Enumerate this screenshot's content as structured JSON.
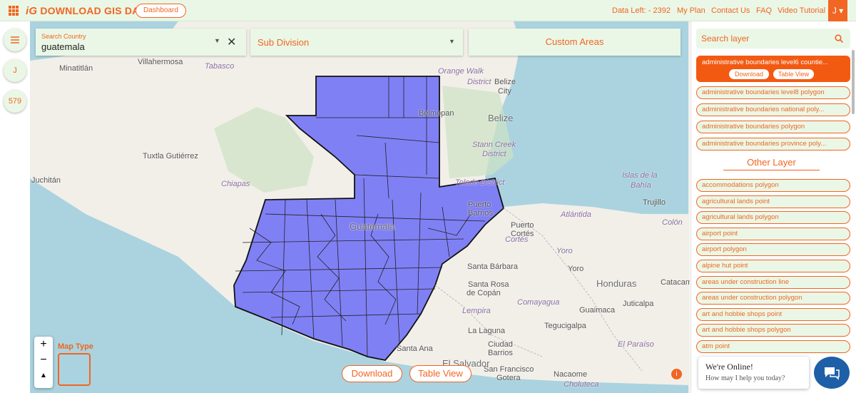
{
  "header": {
    "logo": "DOWNLOAD GIS DATA",
    "logo_icon": "iG",
    "dashboard": "Dashboard",
    "data_left": "Data Left: - 2392",
    "nav": [
      "My Plan",
      "Contact Us",
      "FAQ",
      "Video Tutorial"
    ],
    "user": "J"
  },
  "sidebar": {
    "user": "J",
    "count": "579"
  },
  "search": {
    "country_label": "Search Country",
    "country": "guatemala",
    "subdivision": "Sub Division",
    "custom": "Custom Areas"
  },
  "map": {
    "labels": [
      "Minatitlán",
      "Villahermosa",
      "Tabasco",
      "Orange Walk",
      "District",
      "Belize",
      "City",
      "Belmopan",
      "Belize",
      "Tuxtla Gutiérrez",
      "Stann Creek",
      "District",
      "Juchitán",
      "Chiapas",
      "Toledo District",
      "Islas de la",
      "Bahía",
      "Puerto",
      "Barrios",
      "Trujillo",
      "Puerto",
      "Cortés",
      "Atlántida",
      "Colón",
      "Guatemala",
      "Cortés",
      "Yoro",
      "Santa Bárbara",
      "Yoro",
      "Honduras",
      "Santa Rosa",
      "de Copán",
      "Catacam",
      "Lempira",
      "Comayagua",
      "Guaimaca",
      "Juticalpa",
      "Tegucigalpa",
      "La Laguna",
      "Ciudad",
      "Barrios",
      "El Paraíso",
      "Santa Ana",
      "San Francisco",
      "Gotera",
      "Nacaome",
      "El Salvador",
      "Choluteca"
    ],
    "map_type": "Map Type",
    "download": "Download",
    "table_view": "Table View"
  },
  "layers": {
    "search": "Search layer",
    "selected": {
      "name": "administrative boundaries level6 countie...",
      "download": "Download",
      "table_view": "Table View"
    },
    "items": [
      "administrative boundaries level8 polygon",
      "administrative boundaries national poly...",
      "administrative boundaries polygon",
      "administrative boundaries province poly..."
    ],
    "other_title": "Other Layer",
    "other": [
      "accommodations polygon",
      "agricultural lands point",
      "agricultural lands polygon",
      "airport point",
      "airport polygon",
      "alpine hut point",
      "areas under construction line",
      "areas under construction polygon",
      "art and hobbie shops point",
      "art and hobbie shops polygon",
      "atm point"
    ]
  },
  "chat": {
    "title": "We're Online!",
    "subtitle": "How may I help you today?"
  }
}
